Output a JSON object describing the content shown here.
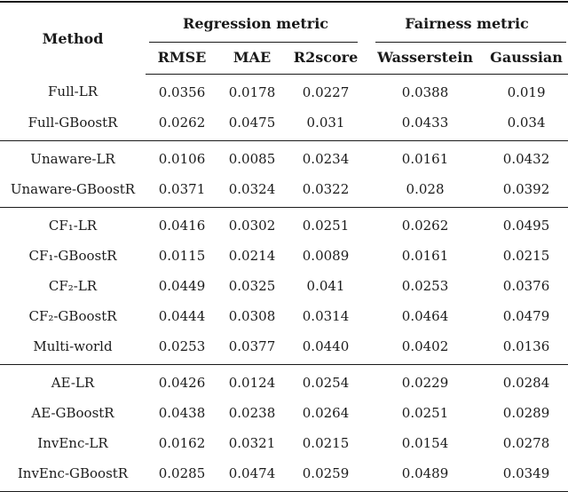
{
  "page": {
    "background_color": "#ffffff",
    "text_color": "#1a1a1a",
    "rule_color": "#1a1a1a"
  },
  "table": {
    "method_header": "Method",
    "column_groups": [
      {
        "label": "Regression metric",
        "columns": [
          "RMSE",
          "MAE",
          "R2score"
        ]
      },
      {
        "label": "Fairness metric",
        "columns": [
          "Wasserstein",
          "Gaussian"
        ]
      }
    ],
    "blocks": [
      {
        "rows": [
          {
            "method": "Full-LR",
            "values": [
              "0.0356",
              "0.0178",
              "0.0227",
              "0.0388",
              "0.019"
            ]
          },
          {
            "method": "Full-GBoostR",
            "values": [
              "0.0262",
              "0.0475",
              "0.031",
              "0.0433",
              "0.034"
            ]
          }
        ]
      },
      {
        "rows": [
          {
            "method": "Unaware-LR",
            "values": [
              "0.0106",
              "0.0085",
              "0.0234",
              "0.0161",
              "0.0432"
            ]
          },
          {
            "method": "Unaware-GBoostR",
            "values": [
              "0.0371",
              "0.0324",
              "0.0322",
              "0.028",
              "0.0392"
            ]
          }
        ]
      },
      {
        "rows": [
          {
            "method": "CF₁-LR",
            "values": [
              "0.0416",
              "0.0302",
              "0.0251",
              "0.0262",
              "0.0495"
            ]
          },
          {
            "method": "CF₁-GBoostR",
            "values": [
              "0.0115",
              "0.0214",
              "0.0089",
              "0.0161",
              "0.0215"
            ]
          },
          {
            "method": "CF₂-LR",
            "values": [
              "0.0449",
              "0.0325",
              "0.041",
              "0.0253",
              "0.0376"
            ]
          },
          {
            "method": "CF₂-GBoostR",
            "values": [
              "0.0444",
              "0.0308",
              "0.0314",
              "0.0464",
              "0.0479"
            ]
          },
          {
            "method": "Multi-world",
            "values": [
              "0.0253",
              "0.0377",
              "0.0440",
              "0.0402",
              "0.0136"
            ]
          }
        ]
      },
      {
        "rows": [
          {
            "method": "AE-LR",
            "values": [
              "0.0426",
              "0.0124",
              "0.0254",
              "0.0229",
              "0.0284"
            ]
          },
          {
            "method": "AE-GBoostR",
            "values": [
              "0.0438",
              "0.0238",
              "0.0264",
              "0.0251",
              "0.0289"
            ]
          },
          {
            "method": "InvEnc-LR",
            "values": [
              "0.0162",
              "0.0321",
              "0.0215",
              "0.0154",
              "0.0278"
            ]
          },
          {
            "method": "InvEnc-GBoostR",
            "values": [
              "0.0285",
              "0.0474",
              "0.0259",
              "0.0489",
              "0.0349"
            ]
          }
        ]
      }
    ]
  }
}
